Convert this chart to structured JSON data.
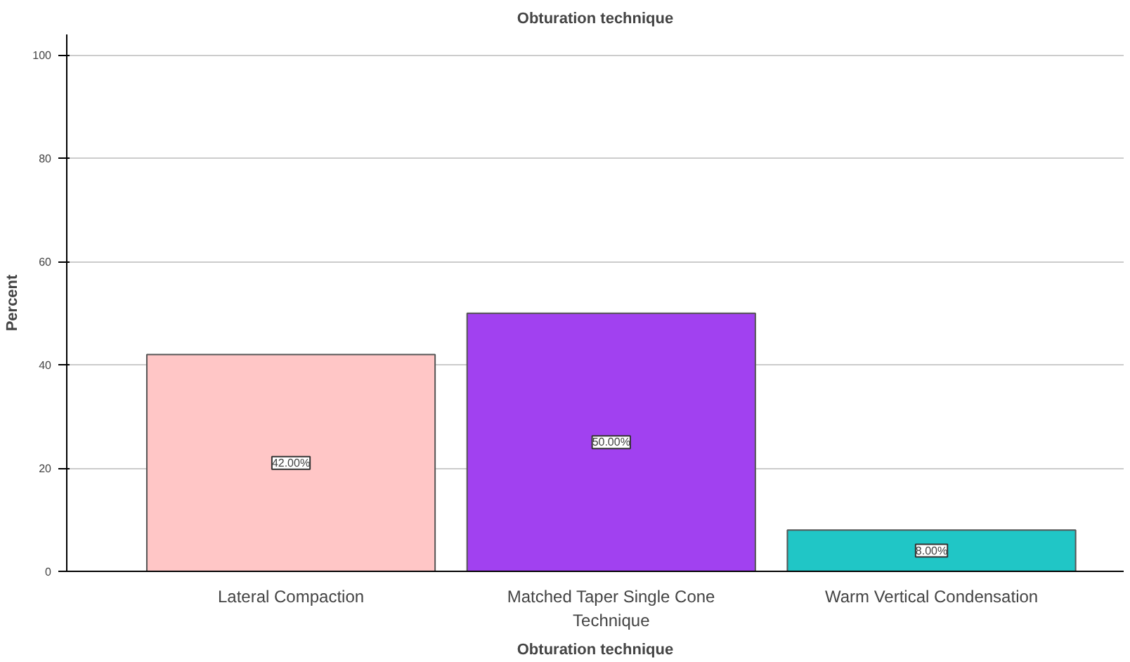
{
  "chart_data": {
    "type": "bar",
    "title": "Obturation technique",
    "xlabel": "Obturation technique",
    "ylabel": "Percent",
    "categories": [
      "Lateral Compaction",
      "Matched Taper Single Cone\nTechnique",
      "Warm Vertical Condensation"
    ],
    "values": [
      42,
      50,
      8
    ],
    "colors": [
      "#ffc6c6",
      "#a141f0",
      "#20c6c6"
    ],
    "value_labels": [
      "42.00%",
      "50.00%",
      "8.00%"
    ],
    "ylim": [
      0,
      104
    ],
    "yticks": [
      0,
      20,
      40,
      60,
      80,
      100
    ],
    "grid": "y"
  }
}
